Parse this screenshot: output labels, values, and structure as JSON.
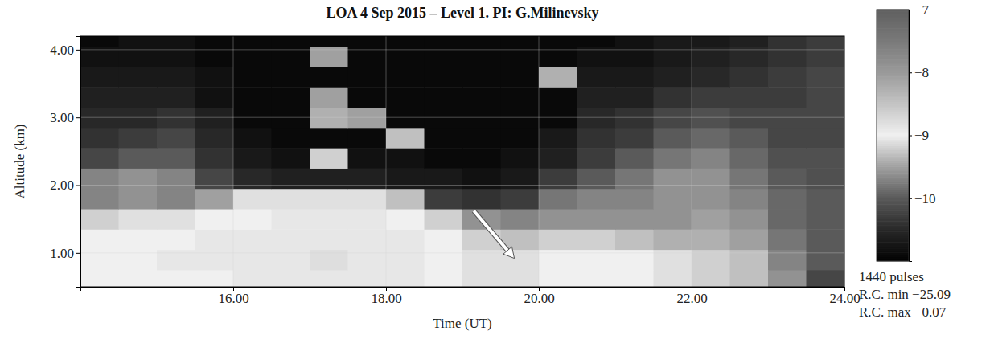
{
  "chart_data": {
    "type": "heatmap",
    "title": "LOA 4 Sep 2015 – Level 1. PI: G.Milinevsky",
    "x_label": "Time (UT)",
    "y_label": "Altitude (km)",
    "x": [
      14.25,
      14.75,
      15.25,
      15.75,
      16.25,
      16.75,
      17.25,
      17.75,
      18.25,
      18.75,
      19.25,
      19.75,
      20.25,
      20.75,
      21.25,
      21.75,
      22.25,
      22.75,
      23.25,
      23.75
    ],
    "y": [
      0.6,
      0.9,
      1.2,
      1.5,
      1.8,
      2.1,
      2.4,
      2.7,
      3.0,
      3.3,
      3.6,
      3.9,
      4.2
    ],
    "values": [
      [
        -9.0,
        -9.0,
        -9.0,
        -9.0,
        -8.9,
        -8.9,
        -8.9,
        -8.9,
        -8.9,
        -9.0,
        -9.1,
        -9.1,
        -9.0,
        -9.0,
        -9.0,
        -9.1,
        -9.2,
        -9.3,
        -9.6,
        -10.2
      ],
      [
        -9.0,
        -9.0,
        -8.9,
        -8.9,
        -8.9,
        -8.9,
        -8.8,
        -8.9,
        -8.9,
        -9.0,
        -9.1,
        -9.1,
        -9.0,
        -9.0,
        -9.0,
        -9.1,
        -9.2,
        -9.3,
        -9.7,
        -10.0
      ],
      [
        -9.0,
        -9.0,
        -9.0,
        -8.9,
        -8.9,
        -8.9,
        -8.9,
        -8.9,
        -8.9,
        -9.0,
        -9.2,
        -9.3,
        -9.2,
        -9.2,
        -9.3,
        -9.4,
        -9.4,
        -9.5,
        -9.8,
        -10.0
      ],
      [
        -9.2,
        -9.1,
        -9.1,
        -9.0,
        -9.0,
        -8.9,
        -8.9,
        -8.9,
        -9.0,
        -9.2,
        -9.6,
        -9.7,
        -9.6,
        -9.6,
        -9.6,
        -9.6,
        -9.5,
        -9.6,
        -9.9,
        -10.0
      ],
      [
        -9.7,
        -9.6,
        -9.7,
        -9.5,
        -9.1,
        -9.1,
        -9.1,
        -9.1,
        -9.3,
        -10.3,
        -10.4,
        -10.3,
        -9.8,
        -9.7,
        -9.7,
        -9.6,
        -9.6,
        -9.7,
        -9.9,
        -10.0
      ],
      [
        -9.7,
        -9.6,
        -9.7,
        -10.2,
        -10.5,
        -10.6,
        -10.6,
        -10.6,
        -10.7,
        -10.7,
        -10.8,
        -10.7,
        -10.3,
        -10.0,
        -9.8,
        -9.6,
        -9.6,
        -9.8,
        -10.0,
        -10.1
      ],
      [
        -10.2,
        -10.0,
        -10.0,
        -10.4,
        -10.7,
        -10.8,
        -9.2,
        -10.8,
        -10.8,
        -10.9,
        -10.9,
        -10.8,
        -10.6,
        -10.3,
        -10.0,
        -9.8,
        -9.7,
        -9.9,
        -10.1,
        -10.1
      ],
      [
        -10.4,
        -10.3,
        -10.2,
        -10.5,
        -10.8,
        -10.9,
        -10.9,
        -10.9,
        -9.3,
        -10.9,
        -10.9,
        -10.9,
        -10.7,
        -10.4,
        -10.3,
        -10.0,
        -9.9,
        -10.0,
        -10.2,
        -10.2
      ],
      [
        -10.5,
        -10.5,
        -10.4,
        -10.6,
        -10.9,
        -10.9,
        -9.4,
        -9.5,
        -10.9,
        -10.9,
        -10.9,
        -10.9,
        -10.9,
        -10.5,
        -10.4,
        -10.2,
        -10.1,
        -10.2,
        -10.2,
        -10.2
      ],
      [
        -10.6,
        -10.6,
        -10.6,
        -10.8,
        -10.9,
        -10.9,
        -9.5,
        -10.9,
        -10.9,
        -10.9,
        -10.9,
        -10.9,
        -10.9,
        -10.6,
        -10.6,
        -10.4,
        -10.3,
        -10.3,
        -10.3,
        -10.2
      ],
      [
        -10.7,
        -10.7,
        -10.7,
        -10.8,
        -10.9,
        -10.9,
        -10.9,
        -10.9,
        -10.9,
        -10.9,
        -10.9,
        -10.9,
        -9.4,
        -10.7,
        -10.7,
        -10.6,
        -10.5,
        -10.4,
        -10.3,
        -10.2
      ],
      [
        -10.8,
        -10.8,
        -10.8,
        -10.9,
        -10.9,
        -10.9,
        -9.5,
        -10.9,
        -10.9,
        -10.9,
        -10.9,
        -10.9,
        -10.9,
        -10.8,
        -10.8,
        -10.7,
        -10.6,
        -10.5,
        -10.4,
        -10.3
      ],
      [
        -10.9,
        -10.8,
        -10.8,
        -10.9,
        -10.9,
        -10.9,
        -10.9,
        -10.9,
        -10.9,
        -10.9,
        -10.9,
        -10.9,
        -10.9,
        -10.9,
        -10.8,
        -10.7,
        -10.7,
        -10.6,
        -10.4,
        -10.3
      ]
    ],
    "xlim": [
      14.0,
      24.0
    ],
    "ylim": [
      0.5,
      4.2
    ],
    "xticks": [
      {
        "value": 16,
        "label": "16.00"
      },
      {
        "value": 18,
        "label": "18.00"
      },
      {
        "value": 20,
        "label": "20.00"
      },
      {
        "value": 22,
        "label": "22.00"
      },
      {
        "value": 24,
        "label": "24.00"
      }
    ],
    "yticks": [
      {
        "value": 1,
        "label": "1.00"
      },
      {
        "value": 2,
        "label": "2.00"
      },
      {
        "value": 3,
        "label": "3.00"
      },
      {
        "value": 4,
        "label": "4.00"
      }
    ],
    "grid": true,
    "colorbar": {
      "range": [
        -11,
        -7
      ],
      "ticks": [
        -7,
        -8,
        -9,
        -10
      ]
    },
    "annotations": [
      "1440 pulses",
      "R.C. min −25.09",
      "R.C. max −0.07"
    ]
  }
}
